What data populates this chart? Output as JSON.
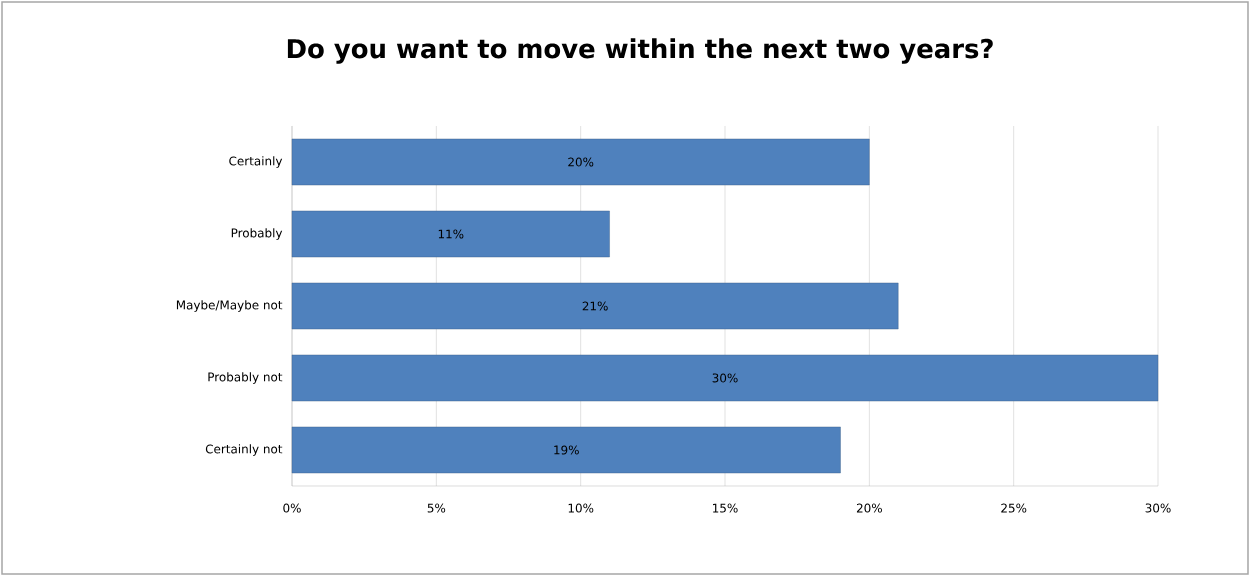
{
  "chart_data": {
    "type": "bar",
    "orientation": "horizontal",
    "title": "Do you want to move within the next two years?",
    "categories": [
      "Certainly",
      "Probably",
      "Maybe/Maybe not",
      "Probably not",
      "Certainly not"
    ],
    "values": [
      20,
      11,
      21,
      30,
      19
    ],
    "value_labels": [
      "20%",
      "11%",
      "21%",
      "30%",
      "19%"
    ],
    "color": "#4f81bd",
    "xlim": [
      0,
      30
    ],
    "xticks": [
      {
        "value": 0,
        "label": "0%"
      },
      {
        "value": 5,
        "label": "5%"
      },
      {
        "value": 10,
        "label": "10%"
      },
      {
        "value": 15,
        "label": "15%"
      },
      {
        "value": 20,
        "label": "20%"
      },
      {
        "value": 25,
        "label": "25%"
      },
      {
        "value": 30,
        "label": "30%"
      }
    ],
    "grid": "x"
  }
}
